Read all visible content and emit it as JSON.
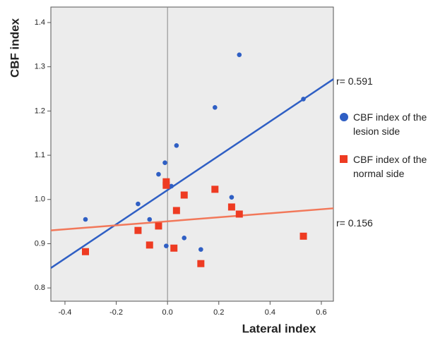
{
  "chart_data": {
    "type": "scatter",
    "x_label": "Lateral index",
    "y_label": "CBF index",
    "xlim": [
      -0.455,
      0.647
    ],
    "ylim": [
      0.77,
      1.435
    ],
    "xticks": [
      -0.4,
      -0.2,
      {
        "value": 0,
        "label": "0.0"
      },
      0.2,
      0.4,
      0.6
    ],
    "yticks": [
      0.8,
      0.9,
      {
        "value": 1,
        "label": "1.0"
      },
      1.1,
      1.2,
      1.3,
      1.4
    ],
    "series": [
      {
        "name": "CBF index of the lesion side",
        "color": "#2f5fc4",
        "marker": "circle",
        "line_color": "#2f5fc4",
        "x": [
          -0.32,
          -0.115,
          -0.07,
          -0.035,
          -0.01,
          -0.005,
          0.015,
          0.035,
          0.065,
          0.13,
          0.185,
          0.25,
          0.28,
          0.53
        ],
        "values": [
          0.955,
          0.99,
          0.955,
          1.057,
          1.083,
          0.895,
          1.03,
          1.122,
          0.913,
          0.887,
          1.208,
          1.005,
          1.327,
          1.227
        ],
        "fit_x": [
          -0.455,
          0.647
        ],
        "fit_y": [
          0.845,
          1.272
        ],
        "fit_label": "r= 0.591"
      },
      {
        "name": "CBF index of the normal side",
        "color": "#ee3b22",
        "marker": "square",
        "line_color": "#f2785a",
        "x": [
          -0.32,
          -0.115,
          -0.07,
          -0.035,
          -0.005,
          -0.005,
          0.025,
          0.035,
          0.065,
          0.13,
          0.185,
          0.25,
          0.28,
          0.53
        ],
        "values": [
          0.882,
          0.93,
          0.897,
          0.94,
          1.04,
          1.032,
          0.89,
          0.975,
          1.01,
          0.855,
          1.023,
          0.983,
          0.967,
          0.917
        ],
        "fit_x": [
          -0.455,
          0.647
        ],
        "fit_y": [
          0.93,
          0.98
        ],
        "fit_label": "r= 0.156"
      }
    ]
  }
}
